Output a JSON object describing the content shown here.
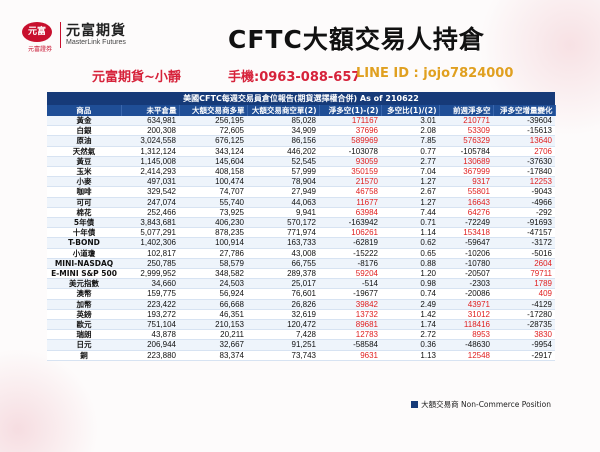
{
  "header": {
    "logo_mark": "元富",
    "logo_sub": "元富證券",
    "logo_cn": "元富期貨",
    "logo_en": "MasterLink Futures",
    "title": "CFTC大額交易人持倉"
  },
  "contact": {
    "agent": "元富期貨~小靜",
    "phone": "手機:0963-088-657",
    "line": "LINE ID : jojo7824000"
  },
  "table": {
    "title": "美國CFTC每週交易員倉位報告(期貨選擇權合併) As of  210622",
    "columns": [
      "商品",
      "未平倉量",
      "大額交易商多單",
      "大額交易商空單(2)",
      "淨多空(1)-(2)",
      "多空比(1)/(2)",
      "前週淨多空",
      "淨多空增量變化"
    ],
    "rows": [
      {
        "name": "黃金",
        "oi": "634,981",
        "long": "256,195",
        "short": "85,028",
        "net": "171167",
        "ratio": "3.01",
        "prev": "210771",
        "chg": "-39604"
      },
      {
        "name": "白銀",
        "oi": "200,308",
        "long": "72,605",
        "short": "34,909",
        "net": "37696",
        "ratio": "2.08",
        "prev": "53309",
        "chg": "-15613"
      },
      {
        "name": "原油",
        "oi": "3,024,558",
        "long": "676,125",
        "short": "86,156",
        "net": "589969",
        "ratio": "7.85",
        "prev": "576329",
        "chg": "13640"
      },
      {
        "name": "天然氣",
        "oi": "1,312,124",
        "long": "343,124",
        "short": "446,202",
        "net": "-103078",
        "ratio": "0.77",
        "prev": "-105784",
        "chg": "2706"
      },
      {
        "name": "黃豆",
        "oi": "1,145,008",
        "long": "145,604",
        "short": "52,545",
        "net": "93059",
        "ratio": "2.77",
        "prev": "130689",
        "chg": "-37630"
      },
      {
        "name": "玉米",
        "oi": "2,414,293",
        "long": "408,158",
        "short": "57,999",
        "net": "350159",
        "ratio": "7.04",
        "prev": "367999",
        "chg": "-17840"
      },
      {
        "name": "小麥",
        "oi": "497,031",
        "long": "100,474",
        "short": "78,904",
        "net": "21570",
        "ratio": "1.27",
        "prev": "9317",
        "chg": "12253"
      },
      {
        "name": "咖啡",
        "oi": "329,542",
        "long": "74,707",
        "short": "27,949",
        "net": "46758",
        "ratio": "2.67",
        "prev": "55801",
        "chg": "-9043"
      },
      {
        "name": "可可",
        "oi": "247,074",
        "long": "55,740",
        "short": "44,063",
        "net": "11677",
        "ratio": "1.27",
        "prev": "16643",
        "chg": "-4966"
      },
      {
        "name": "棉花",
        "oi": "252,466",
        "long": "73,925",
        "short": "9,941",
        "net": "63984",
        "ratio": "7.44",
        "prev": "64276",
        "chg": "-292"
      },
      {
        "name": "5年債",
        "oi": "3,843,681",
        "long": "406,230",
        "short": "570,172",
        "net": "-163942",
        "ratio": "0.71",
        "prev": "-72249",
        "chg": "-91693"
      },
      {
        "name": "十年債",
        "oi": "5,077,291",
        "long": "878,235",
        "short": "771,974",
        "net": "106261",
        "ratio": "1.14",
        "prev": "153418",
        "chg": "-47157"
      },
      {
        "name": "T-BOND",
        "oi": "1,402,306",
        "long": "100,914",
        "short": "163,733",
        "net": "-62819",
        "ratio": "0.62",
        "prev": "-59647",
        "chg": "-3172"
      },
      {
        "name": "小道瓊",
        "oi": "102,817",
        "long": "27,786",
        "short": "43,008",
        "net": "-15222",
        "ratio": "0.65",
        "prev": "-10206",
        "chg": "-5016"
      },
      {
        "name": "MINI-NASDAQ",
        "oi": "250,785",
        "long": "58,579",
        "short": "66,755",
        "net": "-8176",
        "ratio": "0.88",
        "prev": "-10780",
        "chg": "2604"
      },
      {
        "name": "E-MINI S&P 500",
        "oi": "2,999,952",
        "long": "348,582",
        "short": "289,378",
        "net": "59204",
        "ratio": "1.20",
        "prev": "-20507",
        "chg": "79711"
      },
      {
        "name": "美元指數",
        "oi": "34,660",
        "long": "24,503",
        "short": "25,017",
        "net": "-514",
        "ratio": "0.98",
        "prev": "-2303",
        "chg": "1789"
      },
      {
        "name": "澳幣",
        "oi": "159,775",
        "long": "56,924",
        "short": "76,601",
        "net": "-19677",
        "ratio": "0.74",
        "prev": "-20086",
        "chg": "409"
      },
      {
        "name": "加幣",
        "oi": "223,422",
        "long": "66,668",
        "short": "26,826",
        "net": "39842",
        "ratio": "2.49",
        "prev": "43971",
        "chg": "-4129"
      },
      {
        "name": "英鎊",
        "oi": "193,272",
        "long": "46,351",
        "short": "32,619",
        "net": "13732",
        "ratio": "1.42",
        "prev": "31012",
        "chg": "-17280"
      },
      {
        "name": "歐元",
        "oi": "751,104",
        "long": "210,153",
        "short": "120,472",
        "net": "89681",
        "ratio": "1.74",
        "prev": "118416",
        "chg": "-28735"
      },
      {
        "name": "瑞朗",
        "oi": "43,878",
        "long": "20,211",
        "short": "7,428",
        "net": "12783",
        "ratio": "2.72",
        "prev": "8953",
        "chg": "3830"
      },
      {
        "name": "日元",
        "oi": "206,944",
        "long": "32,667",
        "short": "91,251",
        "net": "-58584",
        "ratio": "0.36",
        "prev": "-48630",
        "chg": "-9954"
      },
      {
        "name": "銅",
        "oi": "223,880",
        "long": "83,374",
        "short": "73,743",
        "net": "9631",
        "ratio": "1.13",
        "prev": "12548",
        "chg": "-2917"
      }
    ],
    "footer": "大額交易商 Non-Commerce Position"
  },
  "colors": {
    "brand_red": "#c8102e",
    "table_header": "#1f4e96",
    "positive": "#e02020"
  }
}
